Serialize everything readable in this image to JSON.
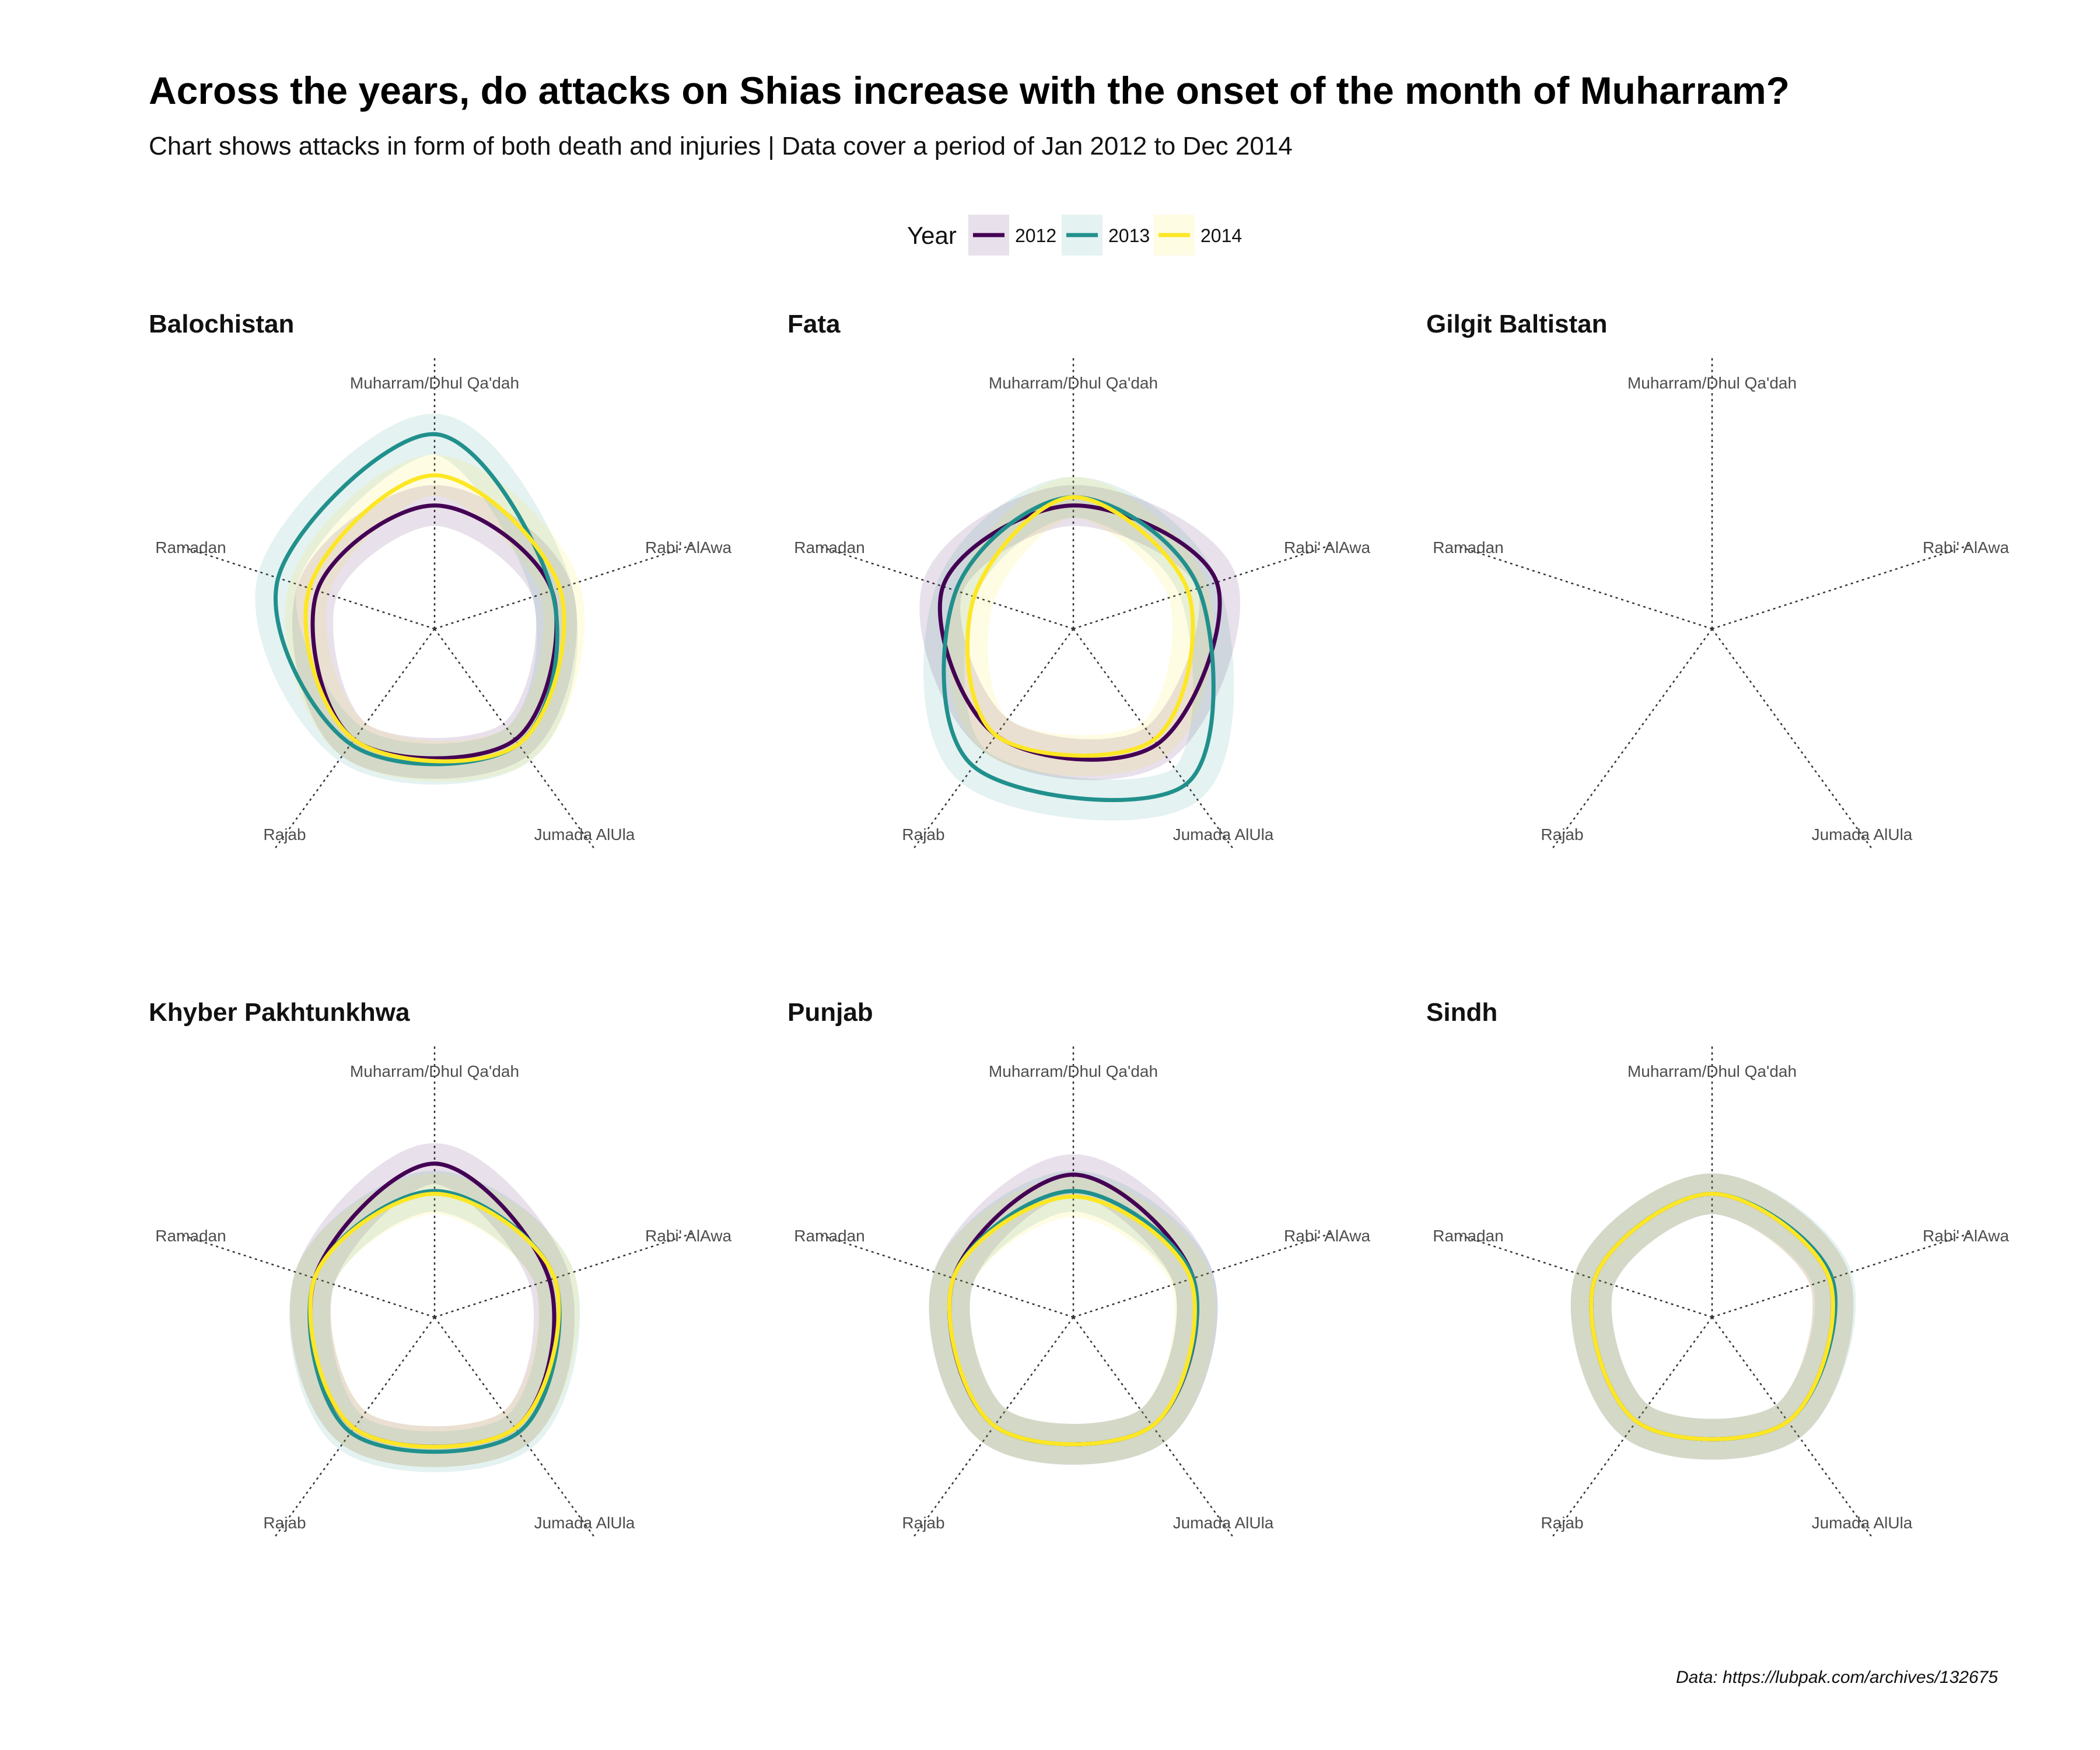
{
  "title": "Across the years, do attacks on Shias increase with the onset of the month of Muharram?",
  "subtitle": "Chart shows attacks in form of both death and injuries | Data cover a period of Jan 2012  to Dec 2014",
  "caption": "Data: https://lubpak.com/archives/132675",
  "legend": {
    "title": "Year",
    "items": [
      {
        "label": "2012",
        "color": "#440154"
      },
      {
        "label": "2013",
        "color": "#21908c"
      },
      {
        "label": "2014",
        "color": "#fde725"
      }
    ]
  },
  "chart_data": {
    "type": "radar",
    "axes": [
      "Muharram/Dhul Qa'dah",
      "Rabi' AlAwa",
      "Jumada AlUla",
      "Rajab",
      "Ramadan"
    ],
    "series_names": [
      "2012",
      "2013",
      "2014"
    ],
    "radial_max": 1.0,
    "panels": [
      {
        "name": "Balochistan",
        "series": [
          {
            "name": "2012",
            "values": [
              0.45,
              0.45,
              0.5,
              0.5,
              0.45
            ]
          },
          {
            "name": "2013",
            "values": [
              0.71,
              0.45,
              0.52,
              0.52,
              0.6
            ]
          },
          {
            "name": "2014",
            "values": [
              0.56,
              0.48,
              0.52,
              0.5,
              0.48
            ]
          }
        ]
      },
      {
        "name": "Fata",
        "series": [
          {
            "name": "2012",
            "values": [
              0.45,
              0.55,
              0.52,
              0.48,
              0.5
            ]
          },
          {
            "name": "2013",
            "values": [
              0.48,
              0.48,
              0.7,
              0.62,
              0.45
            ]
          },
          {
            "name": "2014",
            "values": [
              0.48,
              0.44,
              0.5,
              0.48,
              0.38
            ]
          }
        ]
      },
      {
        "name": "Gilgit Baltistan",
        "series": []
      },
      {
        "name": "Khyber Pakhtunkhwa",
        "series": [
          {
            "name": "2012",
            "values": [
              0.56,
              0.44,
              0.5,
              0.5,
              0.46
            ]
          },
          {
            "name": "2013",
            "values": [
              0.46,
              0.46,
              0.52,
              0.52,
              0.46
            ]
          },
          {
            "name": "2014",
            "values": [
              0.45,
              0.46,
              0.5,
              0.5,
              0.46
            ]
          }
        ]
      },
      {
        "name": "Punjab",
        "series": [
          {
            "name": "2012",
            "values": [
              0.52,
              0.46,
              0.49,
              0.49,
              0.46
            ]
          },
          {
            "name": "2013",
            "values": [
              0.46,
              0.46,
              0.49,
              0.49,
              0.46
            ]
          },
          {
            "name": "2014",
            "values": [
              0.44,
              0.45,
              0.49,
              0.49,
              0.46
            ]
          }
        ]
      },
      {
        "name": "Sindh",
        "series": [
          {
            "name": "2012",
            "values": [
              0.45,
              0.45,
              0.47,
              0.47,
              0.45
            ]
          },
          {
            "name": "2013",
            "values": [
              0.45,
              0.46,
              0.47,
              0.47,
              0.45
            ]
          },
          {
            "name": "2014",
            "values": [
              0.45,
              0.45,
              0.47,
              0.47,
              0.45
            ]
          }
        ]
      }
    ]
  }
}
